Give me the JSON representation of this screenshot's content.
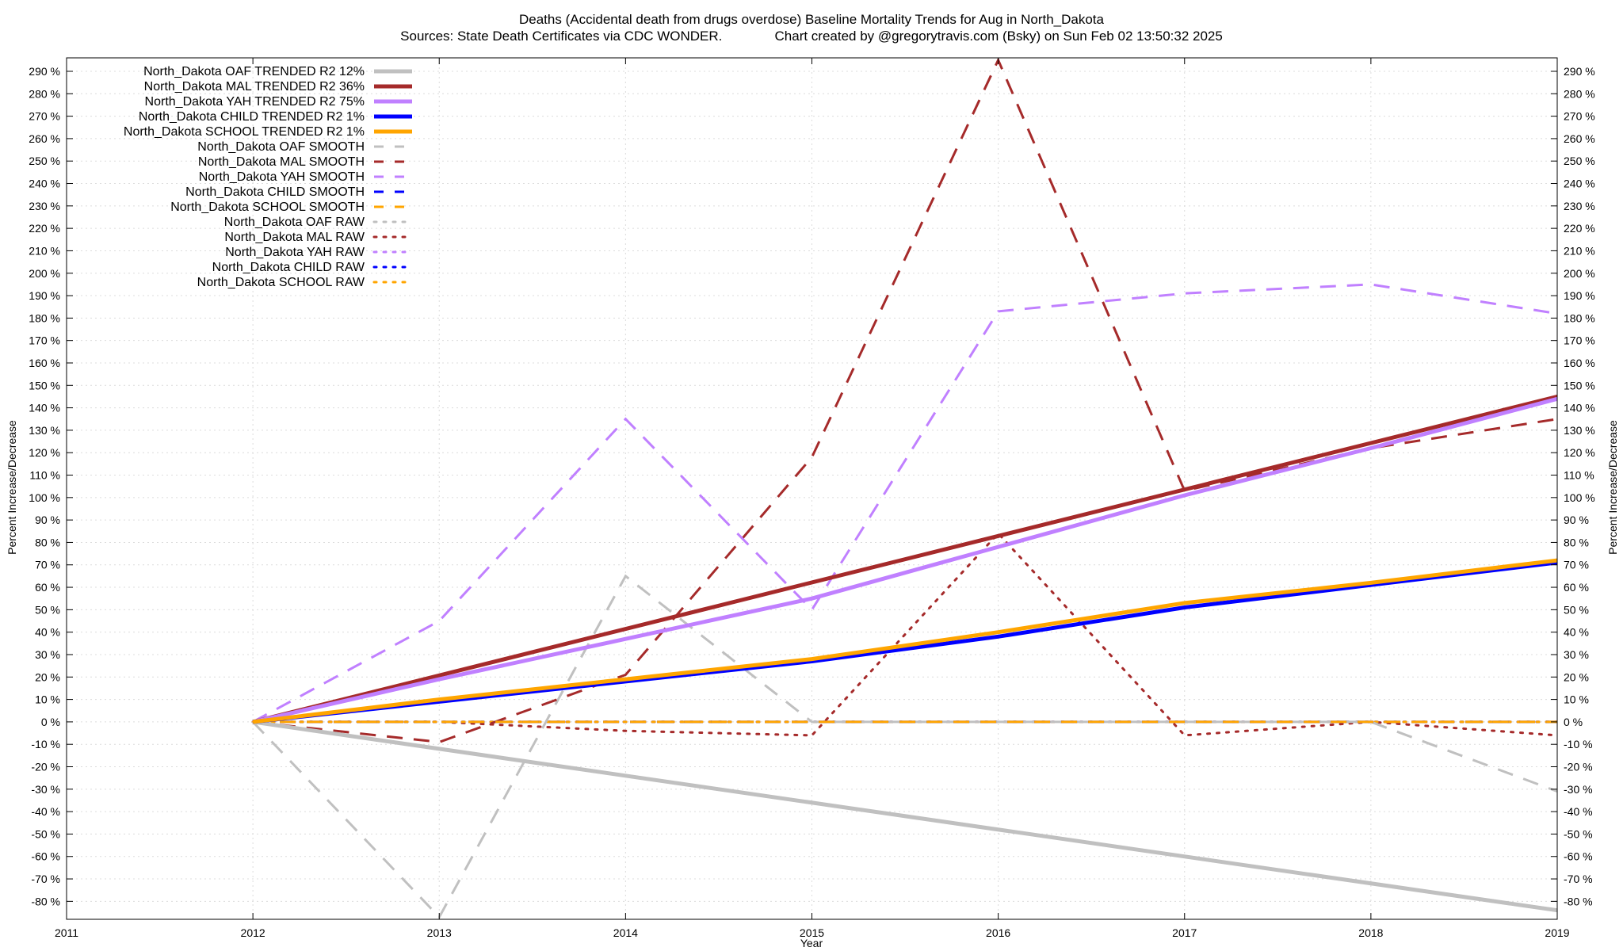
{
  "chart_data": {
    "type": "line",
    "title": "Deaths (Accidental death from drugs overdose)  Baseline Mortality Trends for Aug in North_Dakota",
    "subtitle": "Sources: State Death Certificates via CDC WONDER.              Chart created by @gregorytravis.com (Bsky) on Sun Feb 02 13:50:32 2025",
    "xlabel": "Year",
    "ylabel_left": "Percent Increase/Decrease",
    "ylabel_right": "Percent Increase/Decrease",
    "xlim": [
      2011,
      2019
    ],
    "ylim": [
      -88,
      296
    ],
    "x_ticks": [
      2011,
      2012,
      2013,
      2014,
      2015,
      2016,
      2017,
      2018,
      2019
    ],
    "y_ticks": [
      -80,
      -70,
      -60,
      -50,
      -40,
      -30,
      -20,
      -10,
      0,
      10,
      20,
      30,
      40,
      50,
      60,
      70,
      80,
      90,
      100,
      110,
      120,
      130,
      140,
      150,
      160,
      170,
      180,
      190,
      200,
      210,
      220,
      230,
      240,
      250,
      260,
      270,
      280,
      290
    ],
    "y_tick_suffix": " %",
    "grid": true,
    "legend_position": "top-left",
    "series": [
      {
        "name": "North_Dakota OAF TRENDED R2  12%",
        "style": "solid",
        "color": "#c0c0c0",
        "x": [
          2012,
          2019
        ],
        "values": [
          0,
          -84
        ]
      },
      {
        "name": "North_Dakota MAL TRENDED R2  36%",
        "style": "solid",
        "color": "#a52a2a",
        "x": [
          2012,
          2019
        ],
        "values": [
          0,
          145
        ]
      },
      {
        "name": "North_Dakota YAH TRENDED R2  75%",
        "style": "solid",
        "color": "#c080ff",
        "x": [
          2012,
          2013,
          2014,
          2015,
          2016,
          2017,
          2018,
          2019
        ],
        "values": [
          0,
          19,
          37,
          55,
          78,
          101,
          122,
          144
        ]
      },
      {
        "name": "North_Dakota CHILD TRENDED R2   1%",
        "style": "solid",
        "color": "#0000ff",
        "x": [
          2012,
          2013,
          2014,
          2015,
          2016,
          2017,
          2018,
          2019
        ],
        "values": [
          0,
          9,
          18,
          27,
          38,
          51,
          61,
          71
        ]
      },
      {
        "name": "North_Dakota SCHOOL TRENDED R2   1%",
        "style": "solid",
        "color": "#ffa500",
        "x": [
          2012,
          2013,
          2014,
          2015,
          2016,
          2017,
          2018,
          2019
        ],
        "values": [
          0,
          10,
          19,
          28,
          40,
          53,
          62,
          72
        ]
      },
      {
        "name": "North_Dakota OAF SMOOTH",
        "style": "dashed",
        "color": "#c0c0c0",
        "x": [
          2012,
          2013,
          2014,
          2015,
          2016,
          2017,
          2018,
          2019
        ],
        "values": [
          0,
          -87,
          65,
          0,
          0,
          0,
          0,
          -31
        ]
      },
      {
        "name": "North_Dakota MAL SMOOTH",
        "style": "dashed",
        "color": "#a52a2a",
        "x": [
          2012,
          2013,
          2014,
          2015,
          2016,
          2017,
          2018,
          2019
        ],
        "values": [
          0,
          -9,
          21,
          118,
          295,
          103,
          122,
          135
        ]
      },
      {
        "name": "North_Dakota YAH SMOOTH",
        "style": "dashed",
        "color": "#c080ff",
        "x": [
          2012,
          2013,
          2014,
          2015,
          2016,
          2017,
          2018,
          2019
        ],
        "values": [
          0,
          45,
          135,
          50,
          183,
          191,
          195,
          182
        ]
      },
      {
        "name": "North_Dakota CHILD SMOOTH",
        "style": "dashed",
        "color": "#0000ff",
        "x": [
          2012,
          2019
        ],
        "values": [
          0,
          0
        ]
      },
      {
        "name": "North_Dakota SCHOOL SMOOTH",
        "style": "dashed",
        "color": "#ffa500",
        "x": [
          2012,
          2019
        ],
        "values": [
          0,
          0
        ]
      },
      {
        "name": "North_Dakota OAF RAW",
        "style": "dotted",
        "color": "#c0c0c0",
        "x": [
          2012,
          2019
        ],
        "values": [
          0,
          0
        ]
      },
      {
        "name": "North_Dakota MAL RAW",
        "style": "dotted",
        "color": "#a52a2a",
        "x": [
          2012,
          2013,
          2014,
          2015,
          2016,
          2017,
          2018,
          2019
        ],
        "values": [
          0,
          0,
          -4,
          -6,
          84,
          -6,
          0,
          -6
        ]
      },
      {
        "name": "North_Dakota YAH RAW",
        "style": "dotted",
        "color": "#c080ff",
        "x": [
          2012,
          2019
        ],
        "values": [
          0,
          0
        ]
      },
      {
        "name": "North_Dakota CHILD RAW",
        "style": "dotted",
        "color": "#0000ff",
        "x": [
          2012,
          2019
        ],
        "values": [
          0,
          0
        ]
      },
      {
        "name": "North_Dakota SCHOOL RAW",
        "style": "dotted",
        "color": "#ffa500",
        "x": [
          2012,
          2019
        ],
        "values": [
          0,
          0
        ]
      }
    ]
  }
}
